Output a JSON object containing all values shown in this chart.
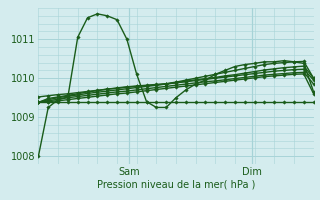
{
  "background_color": "#d4ecee",
  "grid_color": "#a8d4d8",
  "line_color": "#1a5c1a",
  "marker_color": "#1a5c1a",
  "xlabel": "Pression niveau de la mer( hPa )",
  "ylim": [
    1007.8,
    1011.8
  ],
  "yticks": [
    1008,
    1009,
    1010,
    1011
  ],
  "xtick_labels": [
    "Sam",
    "Dim"
  ],
  "xtick_positions": [
    0.33,
    0.775
  ],
  "series": [
    [
      1008.0,
      1009.25,
      1009.45,
      1009.52,
      1011.05,
      1011.55,
      1011.65,
      1011.6,
      1011.5,
      1011.0,
      1010.1,
      1009.4,
      1009.25,
      1009.25,
      1009.5,
      1009.7,
      1009.85,
      1009.95,
      1010.1,
      1010.2,
      1010.3,
      1010.35,
      1010.38,
      1010.42,
      1010.42,
      1010.45,
      1010.42,
      1010.38,
      1009.65
    ],
    [
      1009.38,
      1009.48,
      1009.52,
      1009.56,
      1009.6,
      1009.65,
      1009.68,
      1009.72,
      1009.75,
      1009.78,
      1009.8,
      1009.82,
      1009.84,
      1009.86,
      1009.9,
      1009.95,
      1010.0,
      1010.05,
      1010.1,
      1010.15,
      1010.2,
      1010.25,
      1010.3,
      1010.35,
      1010.38,
      1010.4,
      1010.42,
      1010.43,
      1010.0
    ],
    [
      1009.38,
      1009.45,
      1009.5,
      1009.54,
      1009.57,
      1009.61,
      1009.64,
      1009.67,
      1009.7,
      1009.73,
      1009.76,
      1009.79,
      1009.82,
      1009.85,
      1009.88,
      1009.91,
      1009.94,
      1009.97,
      1010.0,
      1010.03,
      1010.06,
      1010.09,
      1010.12,
      1010.15,
      1010.18,
      1010.2,
      1010.22,
      1010.23,
      1009.95
    ],
    [
      1009.38,
      1009.42,
      1009.46,
      1009.5,
      1009.53,
      1009.56,
      1009.59,
      1009.62,
      1009.65,
      1009.67,
      1009.7,
      1009.73,
      1009.76,
      1009.79,
      1009.82,
      1009.85,
      1009.88,
      1009.91,
      1009.93,
      1009.96,
      1009.99,
      1010.02,
      1010.05,
      1010.08,
      1010.1,
      1010.12,
      1010.14,
      1010.15,
      1009.85
    ],
    [
      1009.38,
      1009.4,
      1009.42,
      1009.45,
      1009.48,
      1009.51,
      1009.54,
      1009.57,
      1009.6,
      1009.62,
      1009.65,
      1009.68,
      1009.71,
      1009.74,
      1009.77,
      1009.8,
      1009.83,
      1009.86,
      1009.89,
      1009.92,
      1009.95,
      1009.98,
      1010.01,
      1010.04,
      1010.06,
      1010.08,
      1010.1,
      1010.11,
      1009.6
    ],
    [
      1009.38,
      1009.38,
      1009.38,
      1009.38,
      1009.38,
      1009.38,
      1009.38,
      1009.38,
      1009.38,
      1009.38,
      1009.38,
      1009.38,
      1009.38,
      1009.38,
      1009.38,
      1009.38,
      1009.38,
      1009.38,
      1009.38,
      1009.38,
      1009.38,
      1009.38,
      1009.38,
      1009.38,
      1009.38,
      1009.38,
      1009.38,
      1009.38,
      1009.38
    ],
    [
      1009.52,
      1009.55,
      1009.58,
      1009.6,
      1009.63,
      1009.66,
      1009.69,
      1009.72,
      1009.74,
      1009.77,
      1009.79,
      1009.81,
      1009.83,
      1009.85,
      1009.89,
      1009.92,
      1009.96,
      1009.99,
      1010.02,
      1010.06,
      1010.09,
      1010.13,
      1010.17,
      1010.21,
      1010.24,
      1010.27,
      1010.29,
      1010.31,
      1010.0
    ]
  ]
}
